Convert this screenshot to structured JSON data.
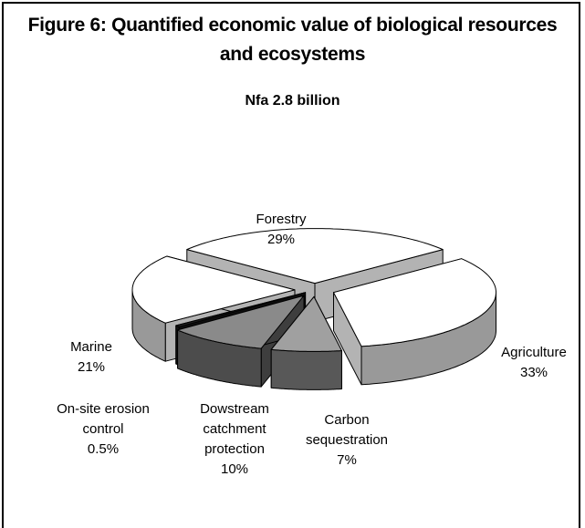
{
  "chart_data": {
    "type": "pie3d",
    "title": "Figure 6: Quantified economic value of biological resources and ecosystems",
    "subtitle": "Nfa 2.8 billion",
    "categories": [
      "Forestry",
      "Agriculture",
      "Carbon sequestration",
      "Dowstream catchment protection",
      "On-site  erosion control",
      "Marine"
    ],
    "values": [
      29,
      33,
      7,
      10,
      0.5,
      21
    ],
    "value_labels": [
      "29%",
      "33%",
      "7%",
      "10%",
      "0.5%",
      "21%"
    ],
    "colors": [
      "#ffffff",
      "#ffffff",
      "#a0a0a0",
      "#8a8a8a",
      "#202020",
      "#ffffff"
    ]
  }
}
